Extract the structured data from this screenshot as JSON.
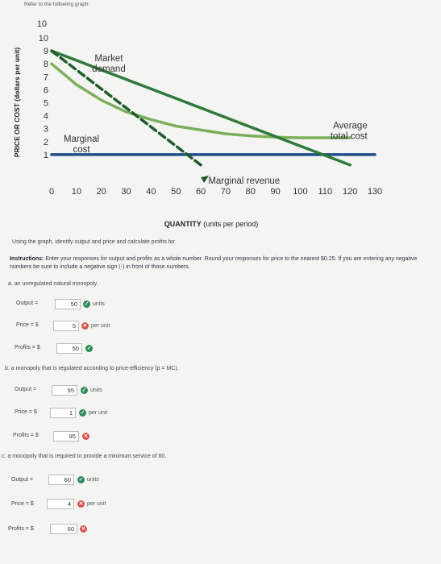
{
  "intro": "Refer to the following graph:",
  "chart_data": {
    "type": "line",
    "xlabel": "QUANTITY",
    "xlabel_suffix": "(units per period)",
    "ylabel": "PRICE OR COST (dollars per unit)",
    "xlim": [
      0,
      130
    ],
    "ylim": [
      0,
      10
    ],
    "x_ticks": [
      "0",
      "10",
      "20",
      "30",
      "40",
      "50",
      "60",
      "70",
      "80",
      "90",
      "100",
      "110",
      "120",
      "130"
    ],
    "y_ticks": [
      "1",
      "2",
      "3",
      "4",
      "5",
      "6",
      "7",
      "8",
      "9",
      "10"
    ],
    "series": [
      {
        "name": "Market demand",
        "color": "#2e7a38",
        "style": "solid",
        "points": [
          [
            0,
            9
          ],
          [
            120,
            0.2
          ]
        ]
      },
      {
        "name": "Marginal revenue",
        "color": "#1f5c2c",
        "style": "dashed",
        "points": [
          [
            0,
            9
          ],
          [
            60,
            0.2
          ]
        ]
      },
      {
        "name": "Average total cost",
        "color": "#7ab05c",
        "style": "solid",
        "points": [
          [
            0,
            8
          ],
          [
            10,
            6.4
          ],
          [
            20,
            5.2
          ],
          [
            30,
            4.3
          ],
          [
            40,
            3.7
          ],
          [
            50,
            3.2
          ],
          [
            60,
            2.9
          ],
          [
            70,
            2.6
          ],
          [
            80,
            2.45
          ],
          [
            90,
            2.35
          ],
          [
            100,
            2.3
          ],
          [
            120,
            2.3
          ]
        ]
      },
      {
        "name": "Marginal cost",
        "color": "#1f4f8a",
        "style": "solid",
        "points": [
          [
            0,
            1
          ],
          [
            130,
            1
          ]
        ]
      }
    ],
    "annotations": [
      {
        "lines": [
          "Market",
          "demand"
        ],
        "x": 23,
        "y": 8.2,
        "anchor": "middle"
      },
      {
        "lines": [
          "Marginal",
          "cost"
        ],
        "x": 12,
        "y": 2.0,
        "anchor": "middle"
      },
      {
        "lines": [
          "Average",
          "total cost"
        ],
        "x": 127,
        "y": 3.0,
        "anchor": "end"
      },
      {
        "lines": [
          "Marginal revenue"
        ],
        "x": 63,
        "y": -1.25,
        "anchor": "start"
      }
    ]
  },
  "instructions": {
    "prompt": "Using the graph, identify output and price and calculate profits for",
    "label": "Instructions:",
    "text": " Enter your responses for output and profits as a whole number. Round your responses for price to the nearest $0.25. If you are entering any negative numbers be sure to include a negative sign (-) in front of those numbers."
  },
  "questions": [
    {
      "text": "a. an unregulated natural monopoly.",
      "output": {
        "label": "Output =",
        "value": "50",
        "status": "correct",
        "unit": "units"
      },
      "price": {
        "label": "Price = $",
        "value": "5",
        "status": "incorrect",
        "unit": "per unit"
      },
      "profits": {
        "label": "Profits = $",
        "value": "50",
        "status": "correct"
      }
    },
    {
      "text": "b. a monopoly that is regulated according to price-efficiency (p = MC).",
      "output": {
        "label": "Output =",
        "value": "95",
        "status": "correct",
        "unit": "units"
      },
      "price": {
        "label": "Price = $",
        "value": "1",
        "status": "correct",
        "unit": "per unit"
      },
      "profits": {
        "label": "Profits = $",
        "value": "95",
        "status": "incorrect"
      }
    },
    {
      "text": "c. a monopoly that is required to provide a minimum service of 60.",
      "output": {
        "label": "Output =",
        "value": "60",
        "status": "correct",
        "unit": "units"
      },
      "price": {
        "label": "Price = $",
        "value": "4",
        "status": "incorrect",
        "unit": "per unit"
      },
      "profits": {
        "label": "Profits = $",
        "value": "60",
        "status": "incorrect"
      }
    }
  ]
}
